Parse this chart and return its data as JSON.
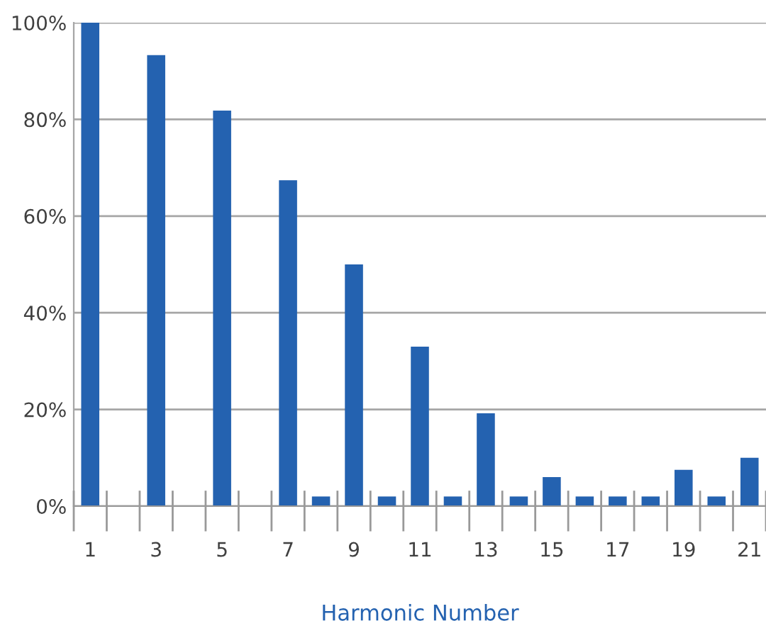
{
  "chart_data": {
    "type": "bar",
    "xlabel": "Harmonic Number",
    "categories": [
      "1",
      null,
      "3",
      null,
      "5",
      null,
      "7",
      null,
      "9",
      null,
      "11",
      null,
      "13",
      null,
      "15",
      null,
      "17",
      null,
      "19",
      null,
      "21"
    ],
    "values": [
      100,
      0,
      93.3,
      0,
      81.8,
      0,
      67.4,
      2,
      50,
      2,
      33,
      2,
      19.2,
      2,
      6,
      2,
      2,
      2,
      7.5,
      2,
      10
    ],
    "color": "#2462b0",
    "ylim": [
      0,
      100
    ],
    "yticks": [
      {
        "value": 0,
        "label": "0%"
      },
      {
        "value": 20,
        "label": "20%"
      },
      {
        "value": 40,
        "label": "40%"
      },
      {
        "value": 60,
        "label": "60%"
      },
      {
        "value": 80,
        "label": "80%"
      },
      {
        "value": 100,
        "label": "100%"
      }
    ],
    "grid": "y",
    "legend": false
  }
}
